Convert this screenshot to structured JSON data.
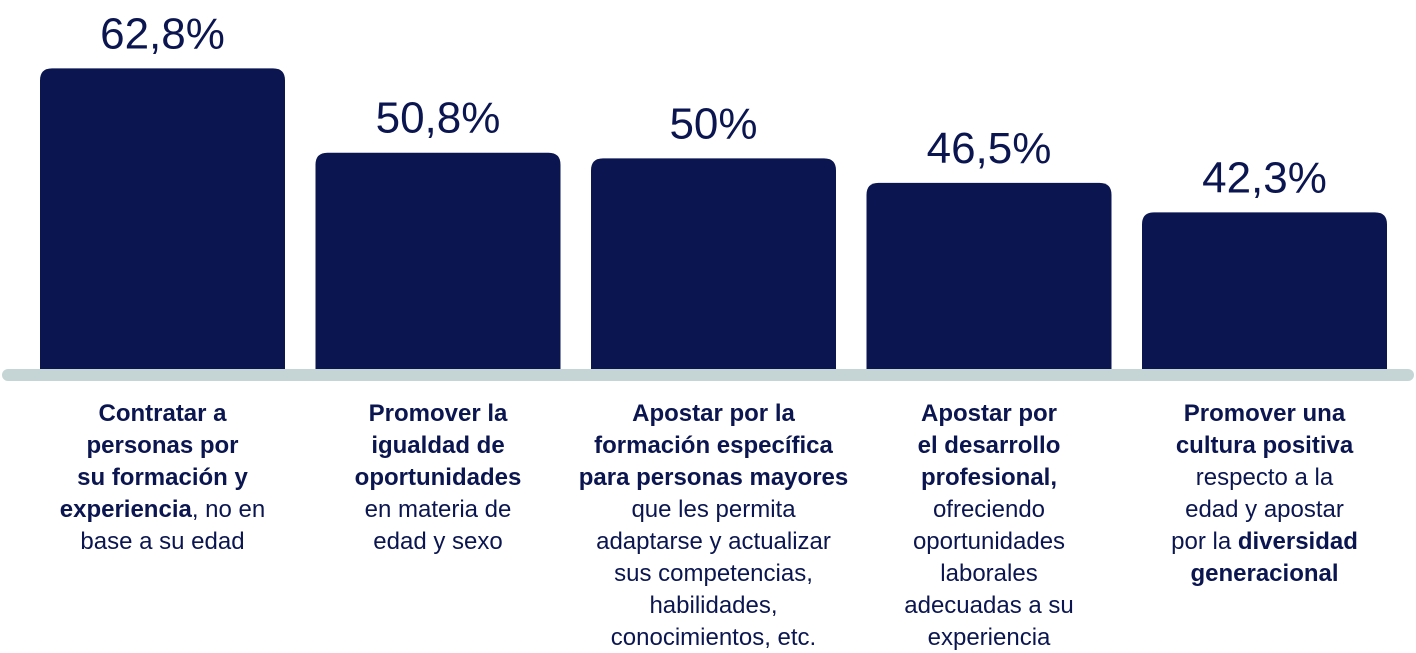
{
  "chart_data": {
    "type": "bar",
    "categories": [
      [
        [
          {
            "text": "Contratar a",
            "bold": true
          }
        ],
        [
          {
            "text": "personas por",
            "bold": true
          }
        ],
        [
          {
            "text": "su formación y",
            "bold": true
          }
        ],
        [
          {
            "text": "experiencia",
            "bold": true
          },
          {
            "text": ", no en",
            "bold": false
          }
        ],
        [
          {
            "text": "base a su edad",
            "bold": false
          }
        ]
      ],
      [
        [
          {
            "text": "Promover la",
            "bold": true
          }
        ],
        [
          {
            "text": "igualdad de",
            "bold": true
          }
        ],
        [
          {
            "text": "oportunidades",
            "bold": true
          }
        ],
        [
          {
            "text": "en materia de",
            "bold": false
          }
        ],
        [
          {
            "text": "edad y sexo",
            "bold": false
          }
        ]
      ],
      [
        [
          {
            "text": "Apostar por la",
            "bold": true
          }
        ],
        [
          {
            "text": "formación específica",
            "bold": true
          }
        ],
        [
          {
            "text": "para personas mayores",
            "bold": true
          }
        ],
        [
          {
            "text": "que les permita",
            "bold": false
          }
        ],
        [
          {
            "text": "adaptarse y actualizar",
            "bold": false
          }
        ],
        [
          {
            "text": "sus competencias,",
            "bold": false
          }
        ],
        [
          {
            "text": "habilidades,",
            "bold": false
          }
        ],
        [
          {
            "text": "conocimientos, etc.",
            "bold": false
          }
        ]
      ],
      [
        [
          {
            "text": "Apostar por",
            "bold": true
          }
        ],
        [
          {
            "text": "el desarrollo",
            "bold": true
          }
        ],
        [
          {
            "text": "profesional,",
            "bold": true
          }
        ],
        [
          {
            "text": "ofreciendo",
            "bold": false
          }
        ],
        [
          {
            "text": "oportunidades",
            "bold": false
          }
        ],
        [
          {
            "text": "laborales",
            "bold": false
          }
        ],
        [
          {
            "text": "adecuadas a su",
            "bold": false
          }
        ],
        [
          {
            "text": "experiencia",
            "bold": false
          }
        ]
      ],
      [
        [
          {
            "text": "Promover una",
            "bold": true
          }
        ],
        [
          {
            "text": "cultura positiva",
            "bold": true
          }
        ],
        [
          {
            "text": "respecto a la",
            "bold": false
          }
        ],
        [
          {
            "text": "edad y apostar",
            "bold": false
          }
        ],
        [
          {
            "text": "por la ",
            "bold": false
          },
          {
            "text": "diversidad",
            "bold": true
          }
        ],
        [
          {
            "text": "generacional",
            "bold": true
          }
        ]
      ]
    ],
    "values": [
      62.8,
      50.8,
      50,
      46.5,
      42.3
    ],
    "value_labels": [
      "62,8%",
      "50,8%",
      "50%",
      "46,5%",
      "42,3%"
    ],
    "color": "#0b1650",
    "ylim": [
      20,
      64
    ]
  }
}
